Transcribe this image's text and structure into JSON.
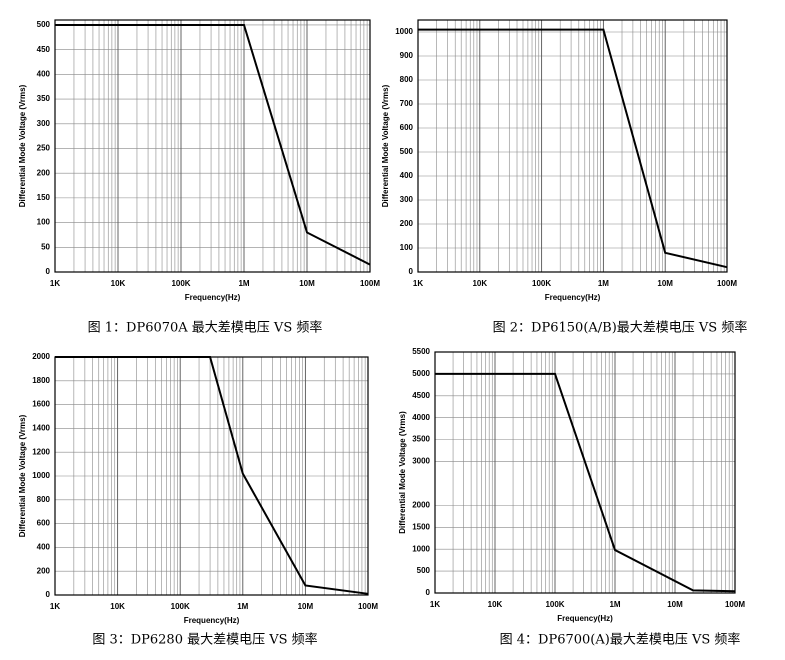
{
  "chart_data": [
    {
      "type": "line",
      "log_x": true,
      "grid": true,
      "color": "#000000",
      "x": [
        1000,
        1000000,
        10000000,
        100000000
      ],
      "values": [
        500,
        500,
        80,
        15
      ],
      "xlim": [
        1000,
        100000000
      ],
      "ylim": [
        0,
        510
      ],
      "xticks": [
        {
          "value": 1000,
          "label": "1K"
        },
        {
          "value": 10000,
          "label": "10K"
        },
        {
          "value": 100000,
          "label": "100K"
        },
        {
          "value": 1000000,
          "label": "1M"
        },
        {
          "value": 10000000,
          "label": "10M"
        },
        {
          "value": 100000000,
          "label": "100M"
        }
      ],
      "yticks": [
        0,
        50,
        100,
        150,
        200,
        250,
        300,
        350,
        400,
        450,
        500
      ],
      "xlabel": "Frequency(Hz)",
      "ylabel": "Differential Mode Voltage (Vrms)",
      "caption": "图 1：DP6070A 最大差模电压 VS 频率"
    },
    {
      "type": "line",
      "log_x": true,
      "grid": true,
      "color": "#000000",
      "x": [
        1000,
        1000000,
        10000000,
        100000000
      ],
      "values": [
        1010,
        1010,
        80,
        20
      ],
      "xlim": [
        1000,
        100000000
      ],
      "ylim": [
        0,
        1050
      ],
      "xticks": [
        {
          "value": 1000,
          "label": "1K"
        },
        {
          "value": 10000,
          "label": "10K"
        },
        {
          "value": 100000,
          "label": "100K"
        },
        {
          "value": 1000000,
          "label": "1M"
        },
        {
          "value": 10000000,
          "label": "10M"
        },
        {
          "value": 100000000,
          "label": "100M"
        }
      ],
      "yticks": [
        0,
        100,
        200,
        300,
        400,
        500,
        600,
        700,
        800,
        900,
        1000
      ],
      "xlabel": "Frequency(Hz)",
      "ylabel": "Differential Mode Voltage (Vrms)",
      "caption": "图 2：DP6150(A/B)最大差模电压 VS 频率"
    },
    {
      "type": "line",
      "log_x": true,
      "grid": true,
      "color": "#000000",
      "x": [
        1000,
        300000,
        1000000,
        10000000,
        100000000
      ],
      "values": [
        2000,
        2000,
        1020,
        80,
        10
      ],
      "xlim": [
        1000,
        100000000
      ],
      "ylim": [
        0,
        2000
      ],
      "xticks": [
        {
          "value": 1000,
          "label": "1K"
        },
        {
          "value": 10000,
          "label": "10K"
        },
        {
          "value": 100000,
          "label": "100K"
        },
        {
          "value": 1000000,
          "label": "1M"
        },
        {
          "value": 10000000,
          "label": "10M"
        },
        {
          "value": 100000000,
          "label": "100M"
        }
      ],
      "yticks": [
        0,
        200,
        400,
        600,
        800,
        1000,
        1200,
        1400,
        1600,
        1800,
        2000
      ],
      "xlabel": "Frequency(Hz)",
      "ylabel": "Differential Mode Voltage (Vrms)",
      "caption": "图 3：DP6280 最大差模电压 VS 频率"
    },
    {
      "type": "line",
      "log_x": true,
      "grid": true,
      "color": "#000000",
      "x": [
        1000,
        100000,
        1000000,
        20000000,
        100000000
      ],
      "values": [
        5000,
        5000,
        980,
        60,
        40
      ],
      "xlim": [
        1000,
        100000000
      ],
      "ylim": [
        0,
        5500
      ],
      "xticks": [
        {
          "value": 1000,
          "label": "1K"
        },
        {
          "value": 10000,
          "label": "10K"
        },
        {
          "value": 100000,
          "label": "100K"
        },
        {
          "value": 1000000,
          "label": "1M"
        },
        {
          "value": 10000000,
          "label": "10M"
        },
        {
          "value": 100000000,
          "label": "100M"
        }
      ],
      "yticks": [
        0,
        500,
        1000,
        1500,
        2000,
        3000,
        3500,
        4000,
        4500,
        5000,
        5500
      ],
      "xlabel": "Frequency(Hz)",
      "ylabel": "Differential Mode Voltage (Vrms)",
      "caption": "图 4：DP6700(A)最大差模电压 VS 频率"
    }
  ]
}
